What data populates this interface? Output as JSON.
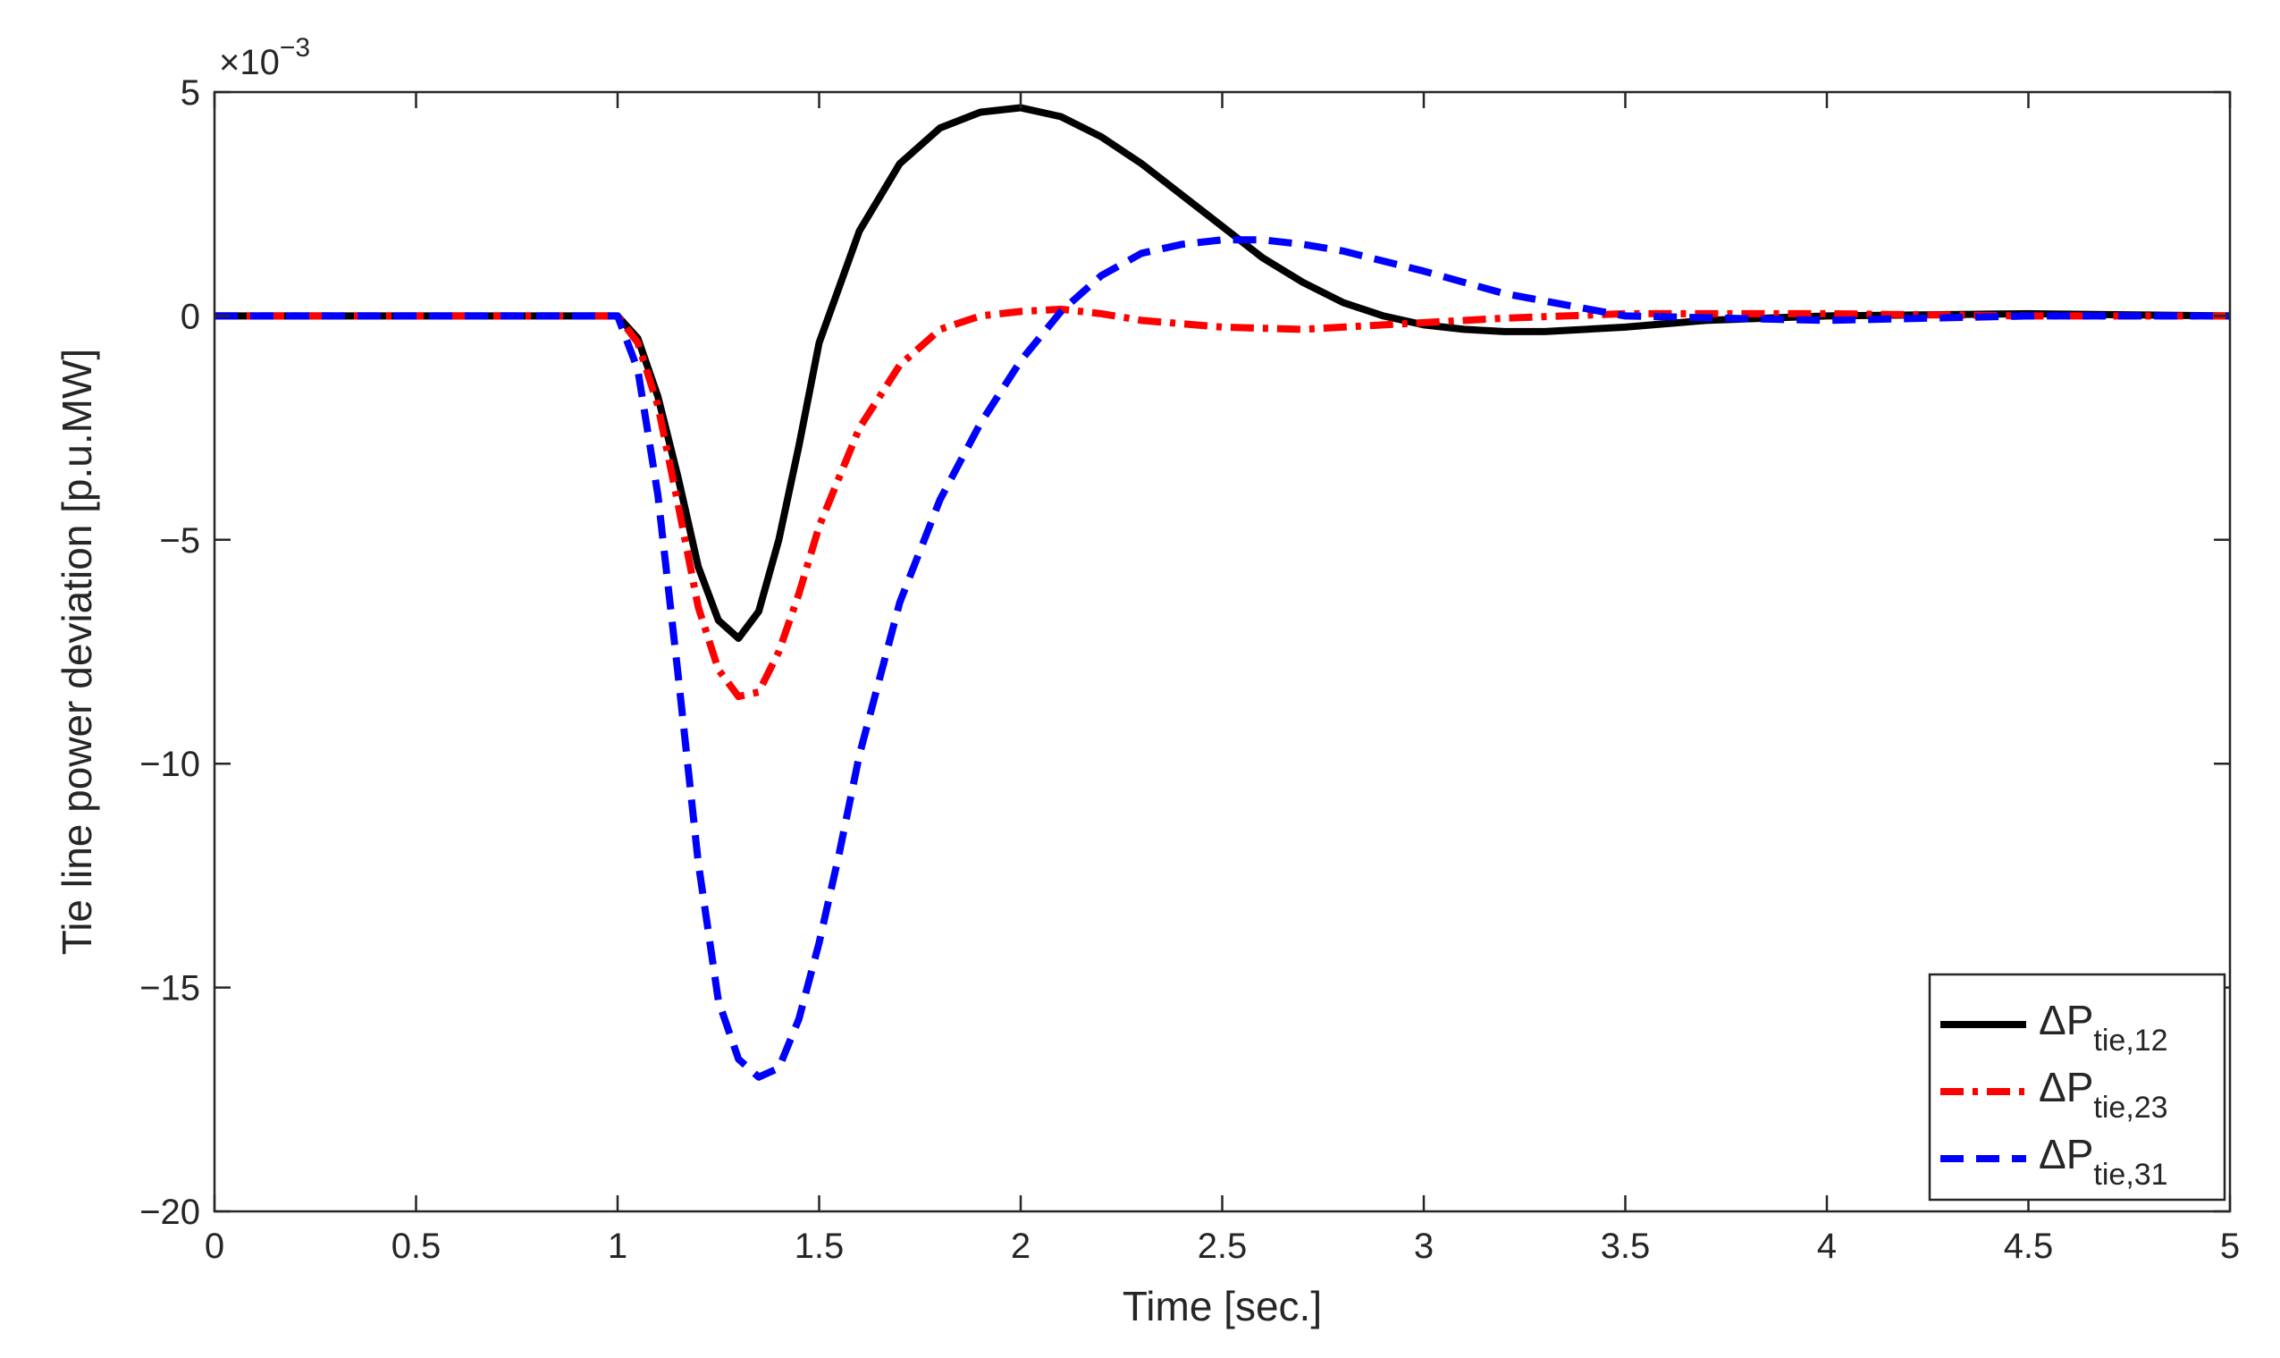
{
  "chart_data": {
    "type": "line",
    "title": "",
    "xlabel": "Time [sec.]",
    "ylabel": "Tie line power deviation [p.u.MW]",
    "y_exponent_label": "×10",
    "y_exponent_power": "−3",
    "xlim": [
      0,
      5
    ],
    "ylim": [
      -20,
      5
    ],
    "x_ticks": [
      0,
      0.5,
      1,
      1.5,
      2,
      2.5,
      3,
      3.5,
      4,
      4.5,
      5
    ],
    "x_tick_labels": [
      "0",
      "0.5",
      "1",
      "1.5",
      "2",
      "2.5",
      "3",
      "3.5",
      "4",
      "4.5",
      "5"
    ],
    "y_ticks": [
      -20,
      -15,
      -10,
      -5,
      0,
      5
    ],
    "y_tick_labels": [
      "−20",
      "−15",
      "−10",
      "−5",
      "0",
      "5"
    ],
    "grid": false,
    "legend_position": "bottom-right",
    "series": [
      {
        "name": "ΔP_tie,12",
        "label_main": "ΔP",
        "label_sub": "tie,12",
        "color": "#000000",
        "style": "solid",
        "x": [
          0,
          0.5,
          1.0,
          1.05,
          1.1,
          1.15,
          1.2,
          1.25,
          1.3,
          1.35,
          1.4,
          1.45,
          1.5,
          1.6,
          1.7,
          1.8,
          1.9,
          2.0,
          2.1,
          2.2,
          2.3,
          2.4,
          2.5,
          2.6,
          2.7,
          2.8,
          2.9,
          3.0,
          3.1,
          3.2,
          3.3,
          3.5,
          3.7,
          4.0,
          4.5,
          5.0
        ],
        "y": [
          0,
          0,
          0,
          -0.5,
          -1.8,
          -3.6,
          -5.6,
          -6.8,
          -7.2,
          -6.6,
          -5.0,
          -2.9,
          -0.6,
          1.9,
          3.4,
          4.2,
          4.55,
          4.65,
          4.45,
          4.0,
          3.4,
          2.7,
          2.0,
          1.3,
          0.75,
          0.3,
          0.0,
          -0.2,
          -0.3,
          -0.35,
          -0.35,
          -0.25,
          -0.1,
          0.0,
          0.05,
          0.0
        ]
      },
      {
        "name": "ΔP_tie,23",
        "label_main": "ΔP",
        "label_sub": "tie,23",
        "color": "#ff0000",
        "style": "dashdot",
        "x": [
          0,
          0.5,
          1.0,
          1.05,
          1.1,
          1.15,
          1.2,
          1.25,
          1.3,
          1.35,
          1.4,
          1.45,
          1.5,
          1.6,
          1.7,
          1.8,
          1.9,
          2.0,
          2.1,
          2.2,
          2.3,
          2.5,
          2.7,
          2.9,
          3.0,
          3.2,
          3.5,
          4.0,
          4.5,
          5.0
        ],
        "y": [
          0,
          0,
          0,
          -0.6,
          -2.0,
          -4.2,
          -6.5,
          -7.9,
          -8.5,
          -8.4,
          -7.5,
          -6.2,
          -4.7,
          -2.5,
          -1.1,
          -0.3,
          0.0,
          0.1,
          0.15,
          0.05,
          -0.1,
          -0.25,
          -0.3,
          -0.2,
          -0.15,
          -0.05,
          0.05,
          0.05,
          0.0,
          0.0
        ]
      },
      {
        "name": "ΔP_tie,31",
        "label_main": "ΔP",
        "label_sub": "tie,31",
        "color": "#0000ff",
        "style": "dashed",
        "x": [
          0,
          0.5,
          1.0,
          1.05,
          1.1,
          1.15,
          1.2,
          1.25,
          1.3,
          1.35,
          1.4,
          1.45,
          1.5,
          1.55,
          1.6,
          1.7,
          1.8,
          1.9,
          2.0,
          2.1,
          2.2,
          2.3,
          2.4,
          2.5,
          2.6,
          2.7,
          2.8,
          3.0,
          3.2,
          3.5,
          4.0,
          4.5,
          5.0
        ],
        "y": [
          0,
          0,
          0,
          -1.2,
          -4.0,
          -8.0,
          -12.2,
          -15.3,
          -16.6,
          -17.0,
          -16.8,
          -15.7,
          -14.0,
          -12.0,
          -9.8,
          -6.4,
          -4.1,
          -2.4,
          -1.0,
          0.1,
          0.9,
          1.4,
          1.6,
          1.7,
          1.7,
          1.6,
          1.45,
          1.0,
          0.5,
          0.0,
          -0.1,
          0.0,
          0.0
        ]
      }
    ]
  }
}
